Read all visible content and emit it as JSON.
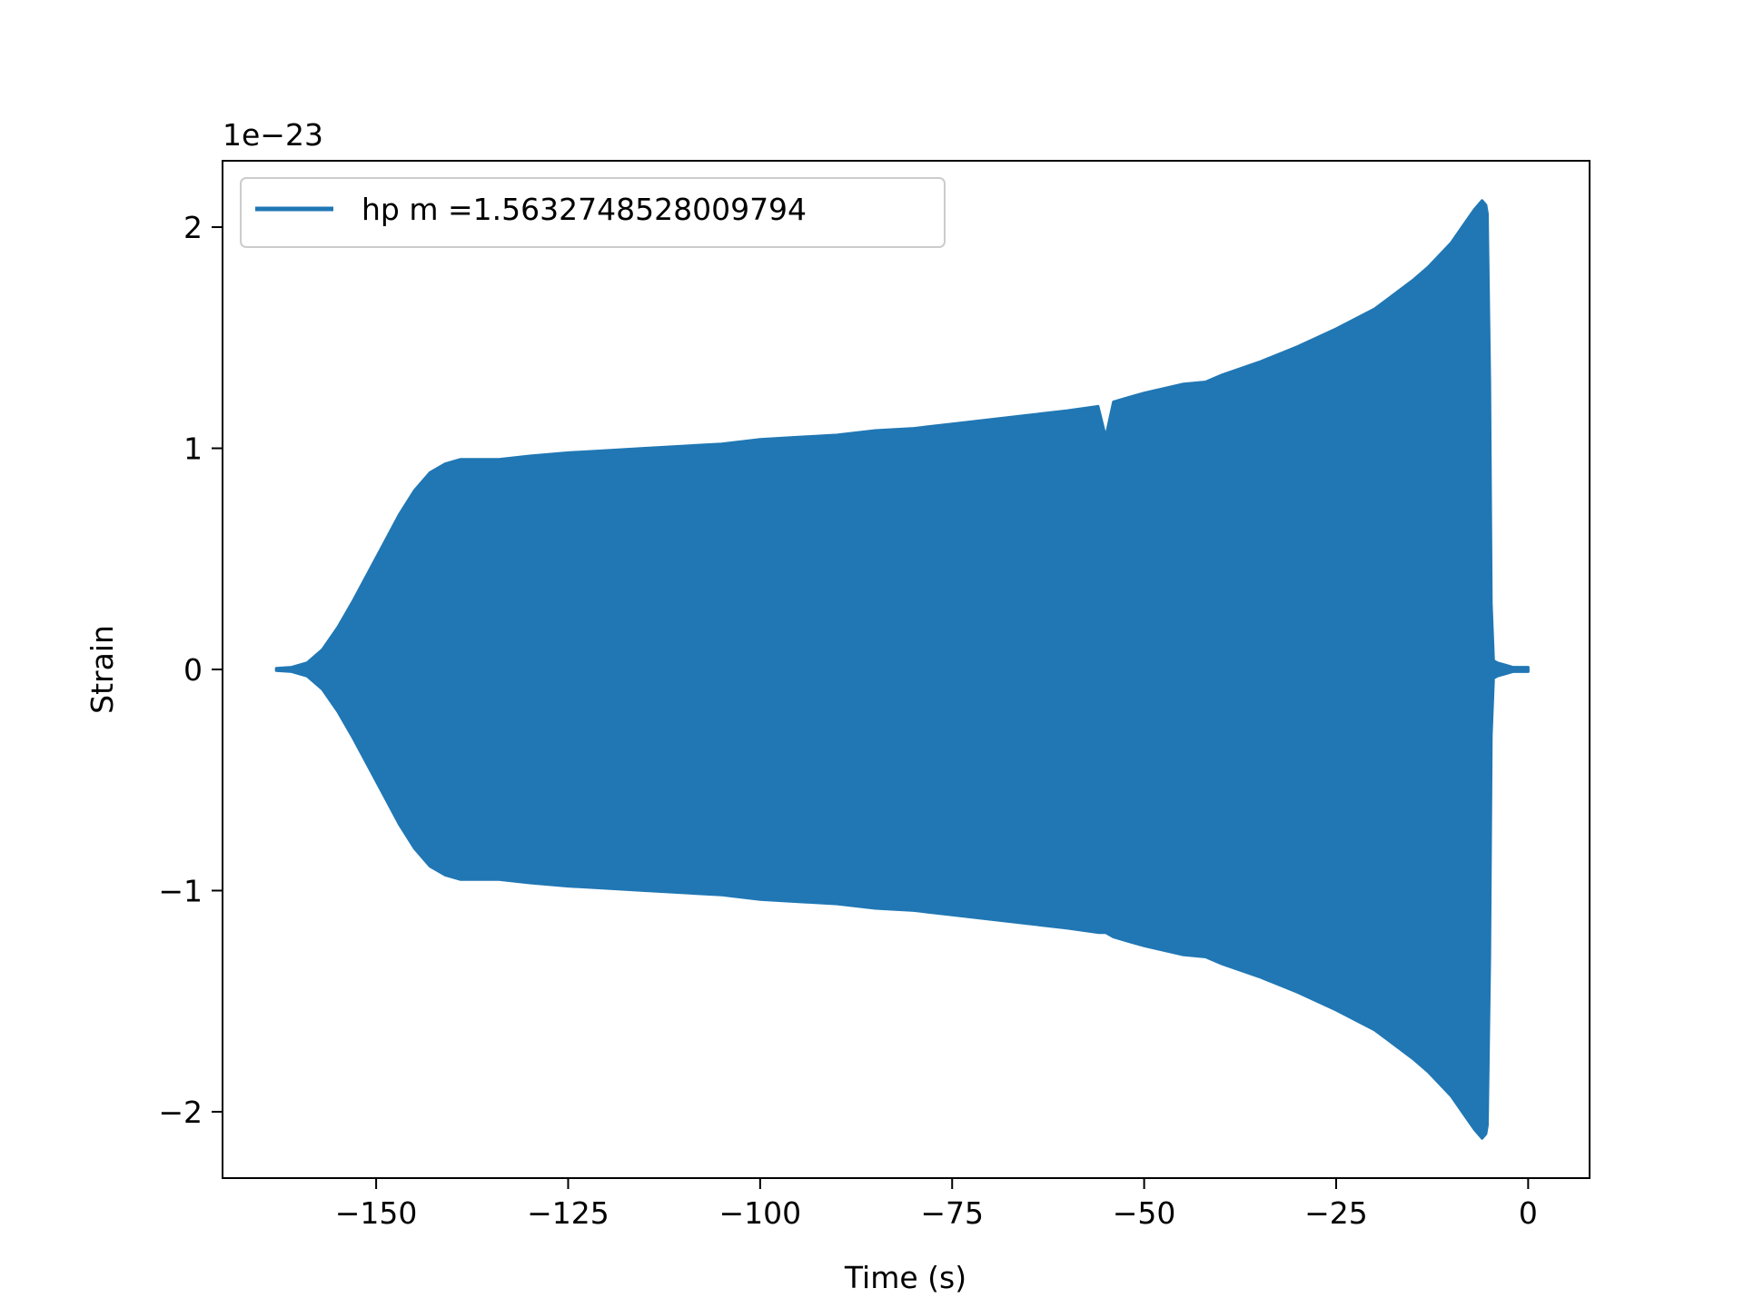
{
  "chart_data": {
    "type": "area",
    "title": "",
    "xlabel": "Time (s)",
    "ylabel": "Strain",
    "y_offset_text": "1e−23",
    "y_scale_exponent": -23,
    "xlim": [
      -170,
      8
    ],
    "ylim": [
      -2.3,
      2.3
    ],
    "xticks": [
      -150,
      -125,
      -100,
      -75,
      -50,
      -25,
      0
    ],
    "xtick_labels": [
      "−150",
      "−125",
      "−100",
      "−75",
      "−50",
      "−25",
      "0"
    ],
    "yticks": [
      -2,
      -1,
      0,
      1,
      2
    ],
    "ytick_labels": [
      "−2",
      "−1",
      "0",
      "1",
      "2"
    ],
    "grid": false,
    "legend_position": "upper-left",
    "series": [
      {
        "name": "hp m =1.5632748528009794",
        "color": "#2077b4",
        "description_kind": "oscillation-envelope",
        "x": [
          -163,
          -161,
          -159,
          -157,
          -155,
          -153,
          -151,
          -149,
          -147,
          -145,
          -143,
          -141,
          -139,
          -137,
          -134,
          -130,
          -125,
          -120,
          -115,
          -110,
          -105,
          -100,
          -95,
          -90,
          -85,
          -80,
          -75,
          -70,
          -65,
          -60,
          -56,
          -55,
          -54,
          -52,
          -50,
          -45,
          -42,
          -40,
          -35,
          -30,
          -25,
          -20,
          -15,
          -13,
          -10,
          -8,
          -7,
          -6,
          -5.5,
          -5.3,
          -5,
          -4.8,
          -4.5,
          -4,
          -3,
          -2,
          -1,
          0
        ],
        "upper": [
          0.005,
          0.01,
          0.03,
          0.09,
          0.19,
          0.31,
          0.44,
          0.57,
          0.7,
          0.81,
          0.89,
          0.93,
          0.95,
          0.95,
          0.95,
          0.965,
          0.98,
          0.99,
          1.0,
          1.01,
          1.02,
          1.04,
          1.05,
          1.06,
          1.08,
          1.09,
          1.11,
          1.13,
          1.15,
          1.17,
          1.19,
          1.05,
          1.21,
          1.23,
          1.25,
          1.29,
          1.3,
          1.33,
          1.39,
          1.46,
          1.54,
          1.63,
          1.76,
          1.82,
          1.93,
          2.03,
          2.08,
          2.12,
          2.1,
          2.06,
          1.3,
          0.3,
          0.04,
          0.03,
          0.02,
          0.01,
          0.01,
          0.01
        ],
        "lower": [
          -0.005,
          -0.01,
          -0.03,
          -0.09,
          -0.19,
          -0.31,
          -0.44,
          -0.57,
          -0.7,
          -0.81,
          -0.89,
          -0.93,
          -0.95,
          -0.95,
          -0.95,
          -0.965,
          -0.98,
          -0.99,
          -1.0,
          -1.01,
          -1.02,
          -1.04,
          -1.05,
          -1.06,
          -1.08,
          -1.09,
          -1.11,
          -1.13,
          -1.15,
          -1.17,
          -1.19,
          -1.19,
          -1.21,
          -1.23,
          -1.25,
          -1.29,
          -1.3,
          -1.33,
          -1.39,
          -1.46,
          -1.54,
          -1.63,
          -1.76,
          -1.82,
          -1.93,
          -2.03,
          -2.08,
          -2.12,
          -2.1,
          -2.06,
          -1.3,
          -0.3,
          -0.04,
          -0.03,
          -0.02,
          -0.01,
          -0.01,
          -0.01
        ]
      }
    ]
  }
}
